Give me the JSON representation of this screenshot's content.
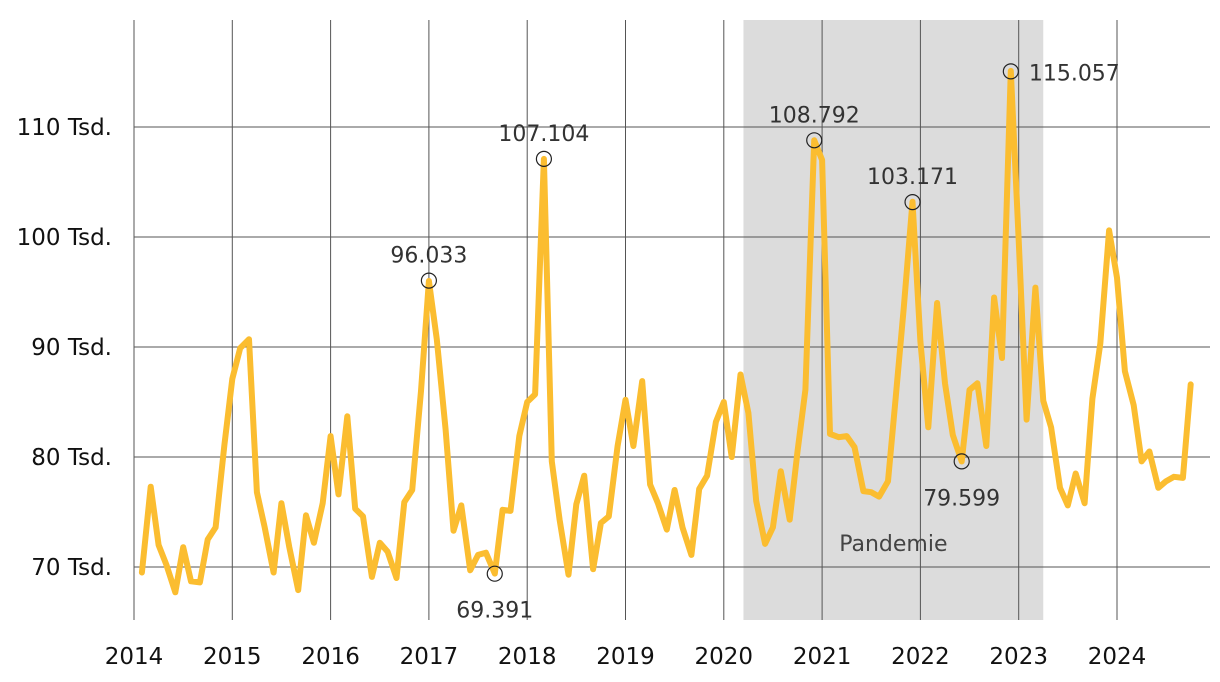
{
  "chart_data": {
    "type": "line",
    "title": "",
    "xlabel": "",
    "ylabel": "",
    "x_ticks": [
      "2014",
      "2015",
      "2016",
      "2017",
      "2018",
      "2019",
      "2020",
      "2021",
      "2022",
      "2023",
      "2024"
    ],
    "y_ticks": [
      {
        "value": 70,
        "label": "70 Tsd."
      },
      {
        "value": 80,
        "label": "80 Tsd."
      },
      {
        "value": 90,
        "label": "90 Tsd."
      },
      {
        "value": 100,
        "label": "100 Tsd."
      },
      {
        "value": 110,
        "label": "110 Tsd."
      }
    ],
    "xlim": [
      2014.0,
      2024.95
    ],
    "ylim": [
      65,
      120
    ],
    "grid": true,
    "line_color": "#fbbd30",
    "band": {
      "label": "Pandemie",
      "start": 2020.2,
      "end": 2023.25,
      "color": "#dcdcdc"
    },
    "series": [
      {
        "x": [
          2014.08,
          2014.17,
          2014.25,
          2014.33,
          2014.42,
          2014.5,
          2014.58,
          2014.67,
          2014.75,
          2014.83,
          2014.92,
          2015.0,
          2015.08,
          2015.17,
          2015.25,
          2015.33,
          2015.42,
          2015.5,
          2015.58,
          2015.67,
          2015.75,
          2015.83,
          2015.92,
          2016.0,
          2016.08,
          2016.17,
          2016.25,
          2016.33,
          2016.42,
          2016.5,
          2016.58,
          2016.67,
          2016.75,
          2016.83,
          2016.92,
          2017.0,
          2017.08,
          2017.17,
          2017.25,
          2017.33,
          2017.42,
          2017.5,
          2017.58,
          2017.67,
          2017.75,
          2017.83,
          2017.92,
          2018.0,
          2018.08,
          2018.17,
          2018.25,
          2018.33,
          2018.42,
          2018.5,
          2018.58,
          2018.67,
          2018.75,
          2018.83,
          2018.92,
          2019.0,
          2019.08,
          2019.17,
          2019.25,
          2019.33,
          2019.42,
          2019.5,
          2019.58,
          2019.67,
          2019.75,
          2019.83,
          2019.92,
          2020.0,
          2020.08,
          2020.17,
          2020.25,
          2020.33,
          2020.42,
          2020.5,
          2020.58,
          2020.67,
          2020.75,
          2020.83,
          2020.92,
          2021.0,
          2021.08,
          2021.17,
          2021.25,
          2021.33,
          2021.42,
          2021.5,
          2021.58,
          2021.67,
          2021.75,
          2021.83,
          2021.92,
          2022.0,
          2022.08,
          2022.17,
          2022.25,
          2022.33,
          2022.42,
          2022.5,
          2022.58,
          2022.67,
          2022.75,
          2022.83,
          2022.92,
          2023.0,
          2023.08,
          2023.17,
          2023.25,
          2023.33,
          2023.42,
          2023.5,
          2023.58,
          2023.67,
          2023.75,
          2023.83,
          2023.92,
          2024.0,
          2024.08,
          2024.17,
          2024.25,
          2024.33,
          2024.42,
          2024.5,
          2024.58,
          2024.67,
          2024.75
        ],
        "y": [
          69.5,
          77.3,
          72.0,
          70.2,
          67.7,
          71.8,
          68.7,
          68.6,
          72.5,
          73.6,
          81.1,
          87.1,
          89.9,
          90.7,
          76.8,
          73.6,
          69.5,
          75.8,
          71.8,
          67.9,
          74.7,
          72.2,
          75.8,
          81.9,
          76.6,
          83.7,
          75.3,
          74.6,
          69.1,
          72.2,
          71.4,
          69.0,
          75.9,
          77.0,
          86.0,
          96.0,
          90.7,
          82.5,
          73.3,
          75.6,
          69.7,
          71.1,
          71.3,
          69.4,
          75.2,
          75.1,
          81.9,
          85.0,
          85.7,
          107.1,
          79.6,
          74.3,
          69.3,
          75.7,
          78.3,
          69.8,
          74.0,
          74.6,
          81.0,
          85.2,
          81.0,
          86.9,
          77.5,
          75.8,
          73.4,
          77.0,
          73.6,
          71.1,
          77.1,
          78.3,
          83.2,
          85.0,
          80.0,
          87.5,
          84.0,
          76.0,
          72.1,
          73.6,
          78.7,
          74.3,
          80.5,
          86.1,
          108.8,
          107.0,
          82.1,
          81.8,
          81.9,
          80.9,
          76.9,
          76.8,
          76.4,
          77.8,
          85.5,
          93.5,
          103.2,
          90.5,
          82.7,
          94.0,
          86.7,
          82.0,
          79.6,
          86.1,
          86.7,
          81.0,
          94.5,
          89.0,
          115.1,
          99.7,
          83.4,
          95.4,
          85.1,
          82.7,
          77.2,
          75.6,
          78.5,
          75.8,
          85.3,
          90.3,
          100.6,
          96.3,
          87.8,
          84.7,
          79.6,
          80.5,
          77.2,
          77.8,
          78.2,
          78.1,
          86.6
        ]
      }
    ],
    "annotations": [
      {
        "x": 2017.0,
        "y": 96.033,
        "label": "96.033",
        "pos": "above"
      },
      {
        "x": 2017.67,
        "y": 69.391,
        "label": "69.391",
        "pos": "below"
      },
      {
        "x": 2018.17,
        "y": 107.104,
        "label": "107.104",
        "pos": "above"
      },
      {
        "x": 2020.92,
        "y": 108.792,
        "label": "108.792",
        "pos": "above"
      },
      {
        "x": 2021.92,
        "y": 103.171,
        "label": "103.171",
        "pos": "above"
      },
      {
        "x": 2022.42,
        "y": 79.599,
        "label": "79.599",
        "pos": "below"
      },
      {
        "x": 2022.92,
        "y": 115.057,
        "label": "115.057",
        "pos": "right"
      }
    ]
  }
}
